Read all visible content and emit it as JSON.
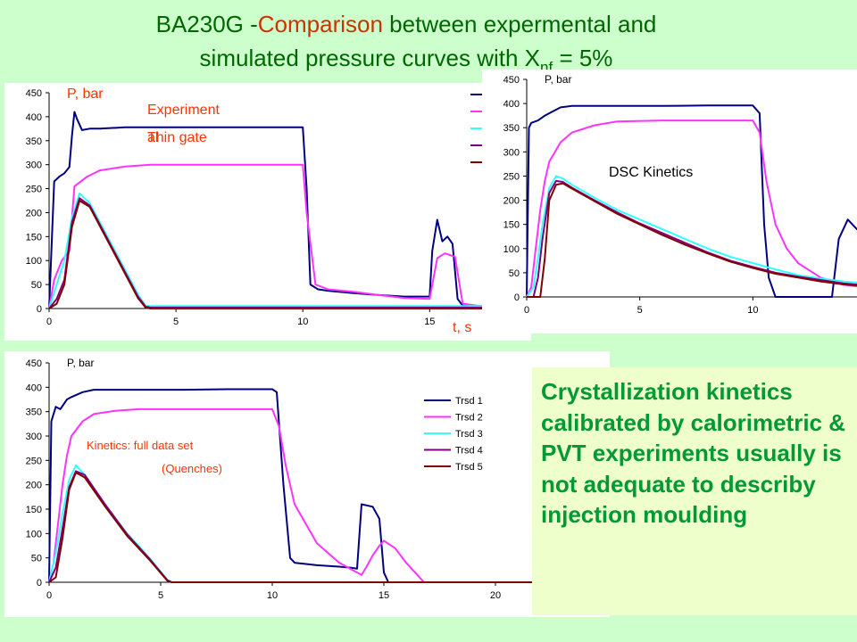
{
  "slide": {
    "title_prefix": "BA230G -",
    "title_accent": "Comparison",
    "title_line1_rest": " between expermental  and",
    "title_line2": "simulated pressure curves  with  X",
    "title_sub": "nf",
    "title_tail": " = 5%",
    "note": "Crystallization kinetics calibrated by calorimetric & PVT experiments usually is not adequate to describy injection moulding"
  },
  "colors": {
    "series": [
      "#000080",
      "#ff33ff",
      "#33ffff",
      "#800080",
      "#800000"
    ],
    "note_text": "#009933",
    "annotation": "#ff3300"
  },
  "chart_data": [
    {
      "type": "line",
      "ylabel": "P, bar",
      "xlabel": "t, s",
      "annotations": [
        "Experiment al",
        "Thin gate"
      ],
      "xticks": [
        0,
        5,
        10,
        15
      ],
      "yticks": [
        0,
        50,
        100,
        150,
        200,
        250,
        300,
        350,
        400,
        450
      ],
      "ylim": [
        0,
        450
      ],
      "xlim": [
        0,
        19
      ],
      "series": [
        {
          "x": [
            0,
            0.2,
            0.4,
            0.6,
            0.8,
            0.9,
            1.0,
            1.1,
            1.3,
            1.6,
            2.0,
            3.0,
            5.0,
            8.0,
            10.0,
            10.15,
            10.3,
            10.6,
            11.0,
            12.0,
            13.0,
            14.0,
            15.0,
            15.1,
            15.3,
            15.5,
            15.7,
            15.9,
            16.1,
            16.3,
            17.0,
            18.0,
            19.0
          ],
          "y": [
            0,
            265,
            275,
            282,
            295,
            360,
            410,
            395,
            372,
            375,
            375,
            378,
            378,
            378,
            378,
            250,
            50,
            40,
            37,
            32,
            28,
            25,
            25,
            120,
            185,
            140,
            150,
            135,
            20,
            6,
            5,
            5,
            5
          ]
        },
        {
          "x": [
            0,
            0.2,
            0.5,
            0.8,
            1.0,
            1.5,
            2.0,
            3.0,
            4.0,
            6.0,
            8.0,
            10.0,
            10.15,
            10.5,
            11.0,
            12.0,
            13.0,
            14.0,
            15.0,
            15.3,
            15.6,
            16.0,
            16.3,
            17.0,
            19.0
          ],
          "y": [
            0,
            60,
            100,
            120,
            255,
            275,
            288,
            296,
            300,
            300,
            300,
            300,
            200,
            50,
            40,
            35,
            28,
            22,
            20,
            105,
            115,
            108,
            10,
            5,
            5
          ]
        },
        {
          "x": [
            0,
            0.3,
            0.6,
            0.9,
            1.2,
            1.6,
            2.5,
            3.5,
            3.8,
            4.0,
            19.0
          ],
          "y": [
            0,
            50,
            100,
            190,
            240,
            220,
            130,
            30,
            6,
            5,
            5
          ]
        },
        {
          "x": [
            0,
            0.3,
            0.6,
            0.9,
            1.2,
            1.6,
            2.5,
            3.5,
            3.8,
            4.0,
            19.0
          ],
          "y": [
            0,
            20,
            60,
            180,
            230,
            215,
            125,
            25,
            4,
            2,
            2
          ]
        },
        {
          "x": [
            0,
            0.3,
            0.6,
            0.9,
            1.2,
            1.6,
            2.5,
            3.5,
            3.8,
            4.0,
            19.0
          ],
          "y": [
            0,
            10,
            50,
            170,
            225,
            212,
            122,
            22,
            2,
            0,
            0
          ]
        }
      ]
    },
    {
      "type": "line",
      "ylabel": "P, bar",
      "annotations": [
        "DSC Kinetics"
      ],
      "xticks": [
        0,
        5,
        10
      ],
      "yticks": [
        0,
        50,
        100,
        150,
        200,
        250,
        300,
        350,
        400,
        450
      ],
      "ylim": [
        0,
        450
      ],
      "xlim": [
        0,
        15
      ],
      "series": [
        {
          "x": [
            0,
            0.1,
            0.2,
            0.5,
            0.8,
            1.0,
            1.5,
            2.0,
            4.0,
            6.0,
            8.0,
            10.0,
            10.3,
            10.5,
            10.7,
            11.0,
            13.0,
            13.5,
            13.8,
            14.2,
            14.6,
            15.0
          ],
          "y": [
            0,
            350,
            360,
            365,
            375,
            380,
            392,
            395,
            395,
            395,
            396,
            396,
            380,
            150,
            40,
            0,
            0,
            0,
            120,
            160,
            140,
            150
          ]
        },
        {
          "x": [
            0,
            0.2,
            0.4,
            0.6,
            0.8,
            1.0,
            1.5,
            2.0,
            3.0,
            4.0,
            6.0,
            8.0,
            10.0,
            10.3,
            10.6,
            11.0,
            11.5,
            12.0,
            13.0,
            14.0,
            15.0
          ],
          "y": [
            0,
            20,
            100,
            180,
            240,
            280,
            320,
            340,
            355,
            363,
            365,
            365,
            365,
            340,
            240,
            150,
            100,
            70,
            40,
            25,
            20
          ]
        },
        {
          "x": [
            0,
            0.3,
            0.5,
            0.7,
            1.0,
            1.3,
            1.6,
            2.0,
            3.0,
            4.0,
            5.0,
            6.0,
            7.0,
            8.0,
            9.0,
            10.0,
            11.0,
            12.0,
            13.0,
            14.0,
            15.0
          ],
          "y": [
            0,
            20,
            80,
            150,
            225,
            250,
            245,
            232,
            205,
            180,
            160,
            140,
            120,
            100,
            83,
            70,
            57,
            45,
            38,
            32,
            28
          ]
        },
        {
          "x": [
            0,
            0.3,
            0.5,
            0.7,
            1.0,
            1.3,
            1.6,
            2.0,
            3.0,
            4.0,
            5.0,
            6.0,
            7.0,
            8.0,
            9.0,
            10.0,
            11.0,
            12.0,
            13.0,
            14.0,
            15.0
          ],
          "y": [
            0,
            0,
            40,
            120,
            215,
            240,
            238,
            226,
            200,
            175,
            152,
            132,
            112,
            92,
            75,
            62,
            50,
            42,
            35,
            28,
            24
          ]
        },
        {
          "x": [
            0,
            0.4,
            0.6,
            0.8,
            1.0,
            1.3,
            1.6,
            2.0,
            3.0,
            4.0,
            5.0,
            6.0,
            7.0,
            8.0,
            9.0,
            10.0,
            11.0,
            12.0,
            13.0,
            14.0,
            15.0
          ],
          "y": [
            0,
            0,
            0,
            80,
            200,
            232,
            235,
            224,
            198,
            172,
            150,
            128,
            108,
            90,
            73,
            60,
            48,
            40,
            32,
            26,
            22
          ]
        }
      ]
    },
    {
      "type": "line",
      "ylabel": "P, bar",
      "annotations": [
        "Kinetics: full data set",
        "(Quenches)"
      ],
      "xticks": [
        0,
        5,
        10,
        15,
        20
      ],
      "yticks": [
        0,
        50,
        100,
        150,
        200,
        250,
        300,
        350,
        400,
        450
      ],
      "ylim": [
        0,
        450
      ],
      "xlim": [
        0,
        22
      ],
      "legend_position": "right",
      "series": [
        {
          "name": "Trsd   1",
          "x": [
            0,
            0.1,
            0.3,
            0.5,
            0.8,
            1.0,
            1.5,
            2.0,
            4.0,
            6.0,
            8.0,
            10.0,
            10.2,
            10.5,
            10.8,
            11.0,
            12.0,
            13.0,
            13.5,
            13.8,
            14.0,
            14.5,
            14.8,
            15.0,
            15.2,
            22.0
          ],
          "y": [
            0,
            330,
            360,
            355,
            375,
            380,
            390,
            395,
            395,
            395,
            396,
            396,
            390,
            200,
            50,
            40,
            35,
            32,
            30,
            28,
            160,
            155,
            130,
            20,
            0,
            0
          ]
        },
        {
          "name": "Trsd   2",
          "x": [
            0,
            0.2,
            0.4,
            0.6,
            0.8,
            1.0,
            1.5,
            2.0,
            3.0,
            4.0,
            6.0,
            8.0,
            10.0,
            10.3,
            10.6,
            11.0,
            12.0,
            13.0,
            14.0,
            14.2,
            14.5,
            14.8,
            15.0,
            15.5,
            16.0,
            16.5,
            16.8,
            22.0
          ],
          "y": [
            0,
            40,
            120,
            200,
            260,
            300,
            330,
            345,
            352,
            355,
            355,
            355,
            355,
            320,
            240,
            160,
            80,
            40,
            15,
            30,
            55,
            75,
            85,
            70,
            40,
            15,
            0,
            0
          ]
        },
        {
          "name": "Trsd   3",
          "x": [
            0,
            0.3,
            0.6,
            0.9,
            1.2,
            1.6,
            2.5,
            3.5,
            4.5,
            5.3,
            5.5,
            22.0
          ],
          "y": [
            0,
            60,
            140,
            210,
            240,
            220,
            160,
            100,
            50,
            5,
            0,
            0
          ]
        },
        {
          "name": "Trsd   4",
          "x": [
            0,
            0.3,
            0.6,
            0.9,
            1.2,
            1.6,
            2.5,
            3.5,
            4.5,
            5.3,
            5.5,
            22.0
          ],
          "y": [
            0,
            30,
            110,
            195,
            228,
            220,
            160,
            98,
            48,
            4,
            0,
            0
          ]
        },
        {
          "name": "Trsd   5",
          "x": [
            0,
            0.3,
            0.6,
            0.9,
            1.2,
            1.6,
            2.5,
            3.5,
            4.5,
            5.3,
            5.5,
            22.0
          ],
          "y": [
            0,
            10,
            90,
            190,
            225,
            215,
            156,
            95,
            46,
            3,
            0,
            0
          ]
        }
      ]
    }
  ]
}
